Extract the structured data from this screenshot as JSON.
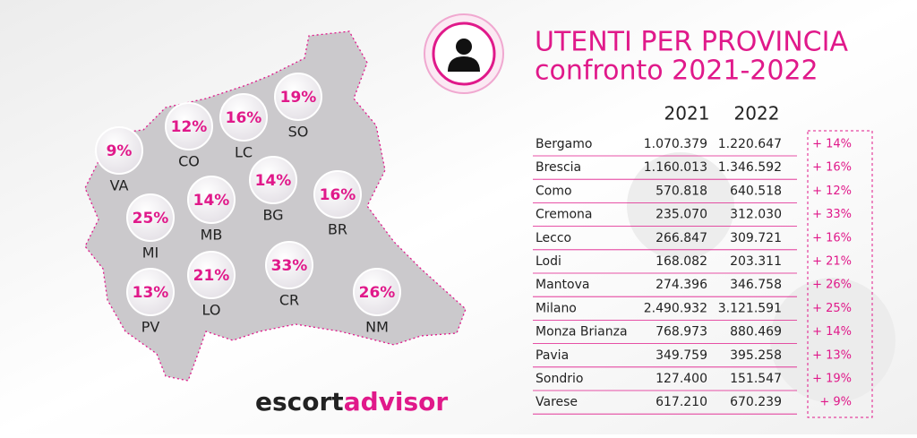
{
  "title": {
    "line1": "UTENTI PER PROVINCIA",
    "line2": "confronto 2021-2022"
  },
  "map": {
    "bubbles": [
      {
        "percent": "9%",
        "code": "VA"
      },
      {
        "percent": "12%",
        "code": "CO"
      },
      {
        "percent": "16%",
        "code": "LC"
      },
      {
        "percent": "19%",
        "code": "SO"
      },
      {
        "percent": "25%",
        "code": "MI"
      },
      {
        "percent": "14%",
        "code": "MB"
      },
      {
        "percent": "14%",
        "code": "BG"
      },
      {
        "percent": "16%",
        "code": "BR"
      },
      {
        "percent": "13%",
        "code": "PV"
      },
      {
        "percent": "21%",
        "code": "LO"
      },
      {
        "percent": "33%",
        "code": "CR"
      },
      {
        "percent": "26%",
        "code": "NM"
      }
    ]
  },
  "table": {
    "header": [
      "2021",
      "2022"
    ],
    "rows": [
      [
        "Bergamo",
        "1.070.379",
        "1.220.647",
        "+ 14%"
      ],
      [
        "Brescia",
        "1.160.013",
        "1.346.592",
        "+ 16%"
      ],
      [
        "Como",
        "570.818",
        "640.518",
        "+ 12%"
      ],
      [
        "Cremona",
        "235.070",
        "312.030",
        "+ 33%"
      ],
      [
        "Lecco",
        "266.847",
        "309.721",
        "+ 16%"
      ],
      [
        "Lodi",
        "168.082",
        "203.311",
        "+ 21%"
      ],
      [
        "Mantova",
        "274.396",
        "346.758",
        "+ 26%"
      ],
      [
        "Milano",
        "2.490.932",
        "3.121.591",
        "+ 25%"
      ],
      [
        "Monza Brianza",
        "768.973",
        "880.469",
        "+ 14%"
      ],
      [
        "Pavia",
        "349.759",
        "395.258",
        "+ 13%"
      ],
      [
        "Sondrio",
        "127.400",
        "151.547",
        "+ 19%"
      ],
      [
        "Varese",
        "617.210",
        "670.239",
        "+ 9%"
      ]
    ]
  },
  "logo": {
    "part1": "escort",
    "part2": "advisor"
  }
}
